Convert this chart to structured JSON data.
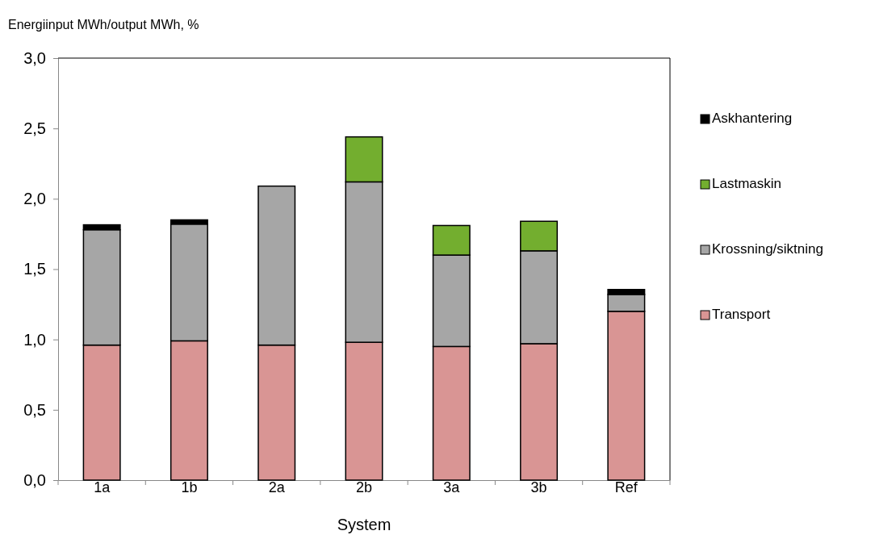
{
  "chart_data": {
    "type": "bar",
    "stacked": true,
    "ylabel": "Energiinput MWh/output MWh, %",
    "xlabel": "System",
    "categories": [
      "1a",
      "1b",
      "2a",
      "2b",
      "3a",
      "3b",
      "Ref"
    ],
    "series": [
      {
        "name": "Transport",
        "color": "#d99594",
        "values": [
          0.96,
          0.99,
          0.96,
          0.98,
          0.95,
          0.97,
          1.2
        ]
      },
      {
        "name": "Krossning/siktning",
        "color": "#a6a6a6",
        "values": [
          0.82,
          0.83,
          1.13,
          1.14,
          0.65,
          0.66,
          0.12
        ]
      },
      {
        "name": "Lastmaskin",
        "color": "#73ae2f",
        "values": [
          0,
          0,
          0,
          0.32,
          0.21,
          0.21,
          0
        ]
      },
      {
        "name": "Askhantering",
        "color": "#000000",
        "values": [
          0.035,
          0.03,
          0,
          0,
          0,
          0,
          0.035
        ]
      }
    ],
    "ylim": [
      0,
      3
    ],
    "yticks": [
      {
        "value": 0,
        "label": "0,0"
      },
      {
        "value": 0.5,
        "label": "0,5"
      },
      {
        "value": 1,
        "label": "1,0"
      },
      {
        "value": 1.5,
        "label": "1,5"
      },
      {
        "value": 2,
        "label": "2,0"
      },
      {
        "value": 2.5,
        "label": "2,5"
      },
      {
        "value": 3,
        "label": "3,0"
      }
    ],
    "legend": "right"
  }
}
